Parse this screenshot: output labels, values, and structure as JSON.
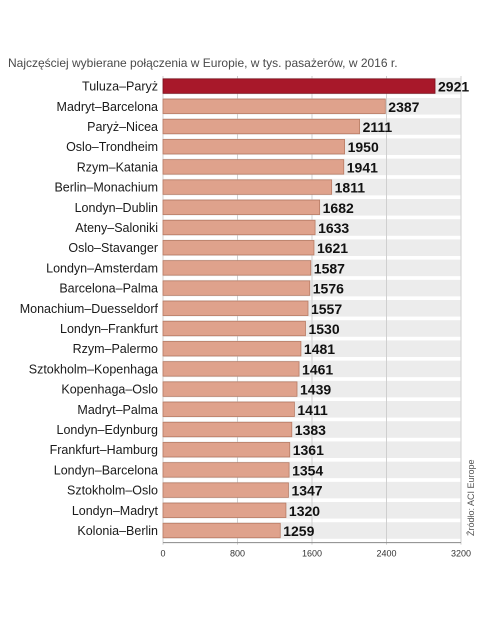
{
  "chart_data": {
    "type": "bar",
    "orientation": "horizontal",
    "subtitle": "Najczęściej wybierane połączenia w Europie, w tys. pasażerów, w 2016 r.",
    "source": "Źródło: ACI Europe",
    "categories": [
      "Tuluza–Paryż",
      "Madryt–Barcelona",
      "Paryż–Nicea",
      "Oslo–Trondheim",
      "Rzym–Katania",
      "Berlin–Monachium",
      "Londyn–Dublin",
      "Ateny–Saloniki",
      "Oslo–Stavanger",
      "Londyn–Amsterdam",
      "Barcelona–Palma",
      "Monachium–Duesseldorf",
      "Londyn–Frankfurt",
      "Rzym–Palermo",
      "Sztokholm–Kopenhaga",
      "Kopenhaga–Oslo",
      "Madryt–Palma",
      "Londyn–Edynburg",
      "Frankfurt–Hamburg",
      "Londyn–Barcelona",
      "Sztokholm–Oslo",
      "Londyn–Madryt",
      "Kolonia–Berlin"
    ],
    "values": [
      2921,
      2387,
      2111,
      1950,
      1941,
      1811,
      1682,
      1633,
      1621,
      1587,
      1576,
      1557,
      1530,
      1481,
      1461,
      1439,
      1411,
      1383,
      1361,
      1354,
      1347,
      1320,
      1259
    ],
    "xlim": [
      0,
      3200
    ],
    "xticks": [
      "0",
      "800",
      "1600",
      "2400",
      "3200"
    ],
    "grid": true,
    "colors": {
      "highlight": "#a8182a",
      "bar": "#dfa28c",
      "bar_border": "#b77b64",
      "row_band": "#ececec"
    }
  }
}
